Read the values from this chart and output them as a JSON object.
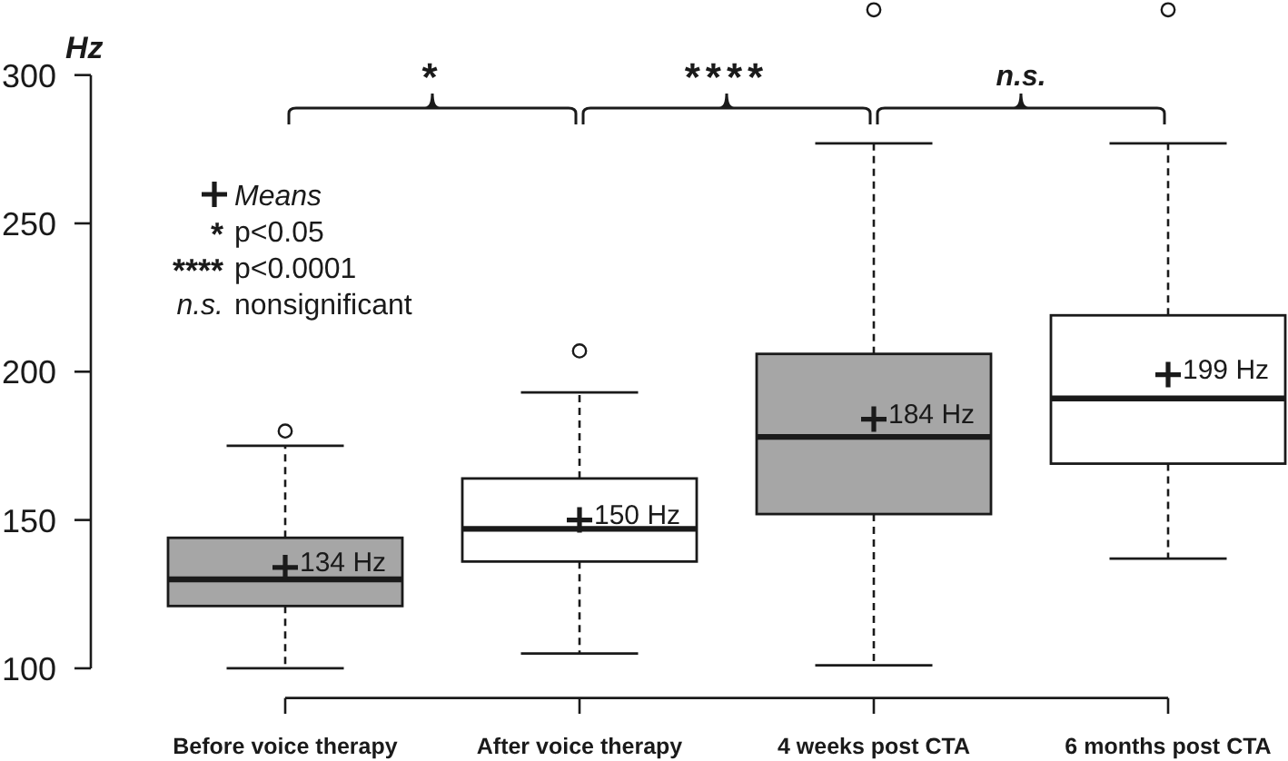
{
  "chart_data": {
    "type": "box",
    "ylabel": "Hz",
    "categories": [
      "Before voice therapy",
      "After voice therapy",
      "4 weeks post CTA",
      "6 months post CTA"
    ],
    "boxes": [
      {
        "low": 100,
        "q1": 121,
        "median": 130,
        "q3": 144,
        "high": 175,
        "mean": 134,
        "outliers": [
          180
        ]
      },
      {
        "low": 105,
        "q1": 136,
        "median": 147,
        "q3": 164,
        "high": 193,
        "mean": 150,
        "outliers": [
          207
        ]
      },
      {
        "low": 101,
        "q1": 152,
        "median": 178,
        "q3": 206,
        "high": 277,
        "mean": 184,
        "outliers": [
          322
        ]
      },
      {
        "low": 137,
        "q1": 169,
        "median": 191,
        "q3": 219,
        "high": 277,
        "mean": 199,
        "outliers": [
          322
        ]
      }
    ],
    "colors": [
      "#a6a6a6",
      "#ffffff",
      "#a6a6a6",
      "#ffffff"
    ],
    "ylim": [
      90,
      325
    ],
    "yticks": [
      100,
      150,
      200,
      250,
      300
    ],
    "marker": "cross",
    "annotations": [
      "*",
      "****",
      "n.s.",
      "Means",
      "* p<0.05",
      "**** p<0.0001",
      "n.s. nonsignificant",
      "134 Hz",
      "150 Hz",
      "184 Hz",
      "199 Hz"
    ]
  }
}
